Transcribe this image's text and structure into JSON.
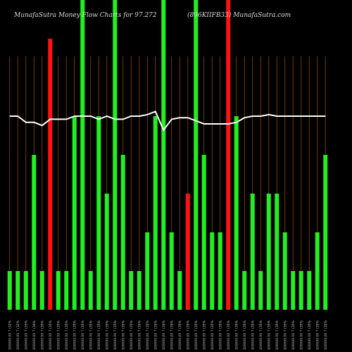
{
  "chart_data": {
    "type": "bar",
    "title_left": "MunafaSutra  Money Flow  Charts for 97.272",
    "title_right": "(896KIIFB33) MunafaSutra.com",
    "colors": {
      "background": "#000000",
      "up": "#22ee22",
      "down": "#ff1111",
      "line": "#ffffff",
      "grid": "#8a4b00"
    },
    "ylim": [
      0,
      100
    ],
    "grid": true,
    "x_labels": [
      "100000.00 7 (32%",
      "100000.00 7 (32%",
      "100000.00 7 (33%",
      "100000.00 7 (34%",
      "100000.00 7 (35%",
      "100000.00 7 (35%",
      "100000.00 7 (35%",
      "100000.00 7 (35%",
      "100000.00 7 (35%",
      "100000.00 7 (35%",
      "100000.00 7 (35%",
      "100000.00 7 (35%",
      "100000.00 7 (35%",
      "100000.00 7 (35%",
      "100000.00 7 (35%",
      "100000.00 7 (35%",
      "100000.00 7 (35%",
      "100000.00 7 (35%",
      "100000.00 7 (35%",
      "100000.00 7 (35%",
      "100000.00 7 (35%",
      "100000.00 7 (35%",
      "100000.00 7 (35%",
      "100000.00 7 (35%",
      "100000.00 7 (35%",
      "100000.00 7 (35%",
      "100000.00 7 (35%",
      "100000.00 7 (35%",
      "100000.00 7 (35%",
      "100000.00 7 (35%",
      "100000.00 7 (35%",
      "100000.00 7 (35%",
      "100000.00 7 (35%",
      "100000.00 7 (35%",
      "100000.00 7 (35%",
      "100000.00 7 (35%",
      "100000.00 7 (35%",
      "100000.00 7 (35%",
      "100000.00 7 (35%",
      "100000.00 7 (35%"
    ],
    "bars": [
      {
        "value": 12.5,
        "color": "up"
      },
      {
        "value": 12.5,
        "color": "up"
      },
      {
        "value": 12.5,
        "color": "up"
      },
      {
        "value": 50,
        "color": "up"
      },
      {
        "value": 12.5,
        "color": "up"
      },
      {
        "value": 87.5,
        "color": "down"
      },
      {
        "value": 12.5,
        "color": "up"
      },
      {
        "value": 12.5,
        "color": "up"
      },
      {
        "value": 62.5,
        "color": "up"
      },
      {
        "value": 100,
        "color": "up"
      },
      {
        "value": 12.5,
        "color": "up"
      },
      {
        "value": 62.5,
        "color": "up"
      },
      {
        "value": 37.5,
        "color": "up"
      },
      {
        "value": 100,
        "color": "up"
      },
      {
        "value": 50,
        "color": "up"
      },
      {
        "value": 12.5,
        "color": "up"
      },
      {
        "value": 12.5,
        "color": "up"
      },
      {
        "value": 25,
        "color": "up"
      },
      {
        "value": 62.5,
        "color": "up"
      },
      {
        "value": 100,
        "color": "up"
      },
      {
        "value": 25,
        "color": "up"
      },
      {
        "value": 12.5,
        "color": "up"
      },
      {
        "value": 37.5,
        "color": "down"
      },
      {
        "value": 100,
        "color": "up"
      },
      {
        "value": 50,
        "color": "up"
      },
      {
        "value": 25,
        "color": "up"
      },
      {
        "value": 25,
        "color": "up"
      },
      {
        "value": 100,
        "color": "down"
      },
      {
        "value": 62.5,
        "color": "up"
      },
      {
        "value": 12.5,
        "color": "up"
      },
      {
        "value": 37.5,
        "color": "up"
      },
      {
        "value": 12.5,
        "color": "up"
      },
      {
        "value": 37.5,
        "color": "up"
      },
      {
        "value": 37.5,
        "color": "up"
      },
      {
        "value": 25,
        "color": "up"
      },
      {
        "value": 12.5,
        "color": "up"
      },
      {
        "value": 12.5,
        "color": "up"
      },
      {
        "value": 12.5,
        "color": "up"
      },
      {
        "value": 25,
        "color": "up"
      },
      {
        "value": 50,
        "color": "up"
      }
    ],
    "line_series": [
      62.5,
      62.5,
      60.5,
      60.5,
      59.5,
      61.5,
      61.5,
      61.5,
      62.5,
      62.5,
      62.5,
      61.5,
      62.5,
      61.5,
      61.5,
      62.5,
      62.5,
      63,
      64,
      58,
      61.5,
      62,
      62,
      61,
      60,
      60,
      60,
      60,
      60.5,
      62,
      62.5,
      62.5,
      63,
      62.5,
      62.5,
      62.5,
      62.5,
      62.5,
      62.5,
      62.5
    ]
  }
}
